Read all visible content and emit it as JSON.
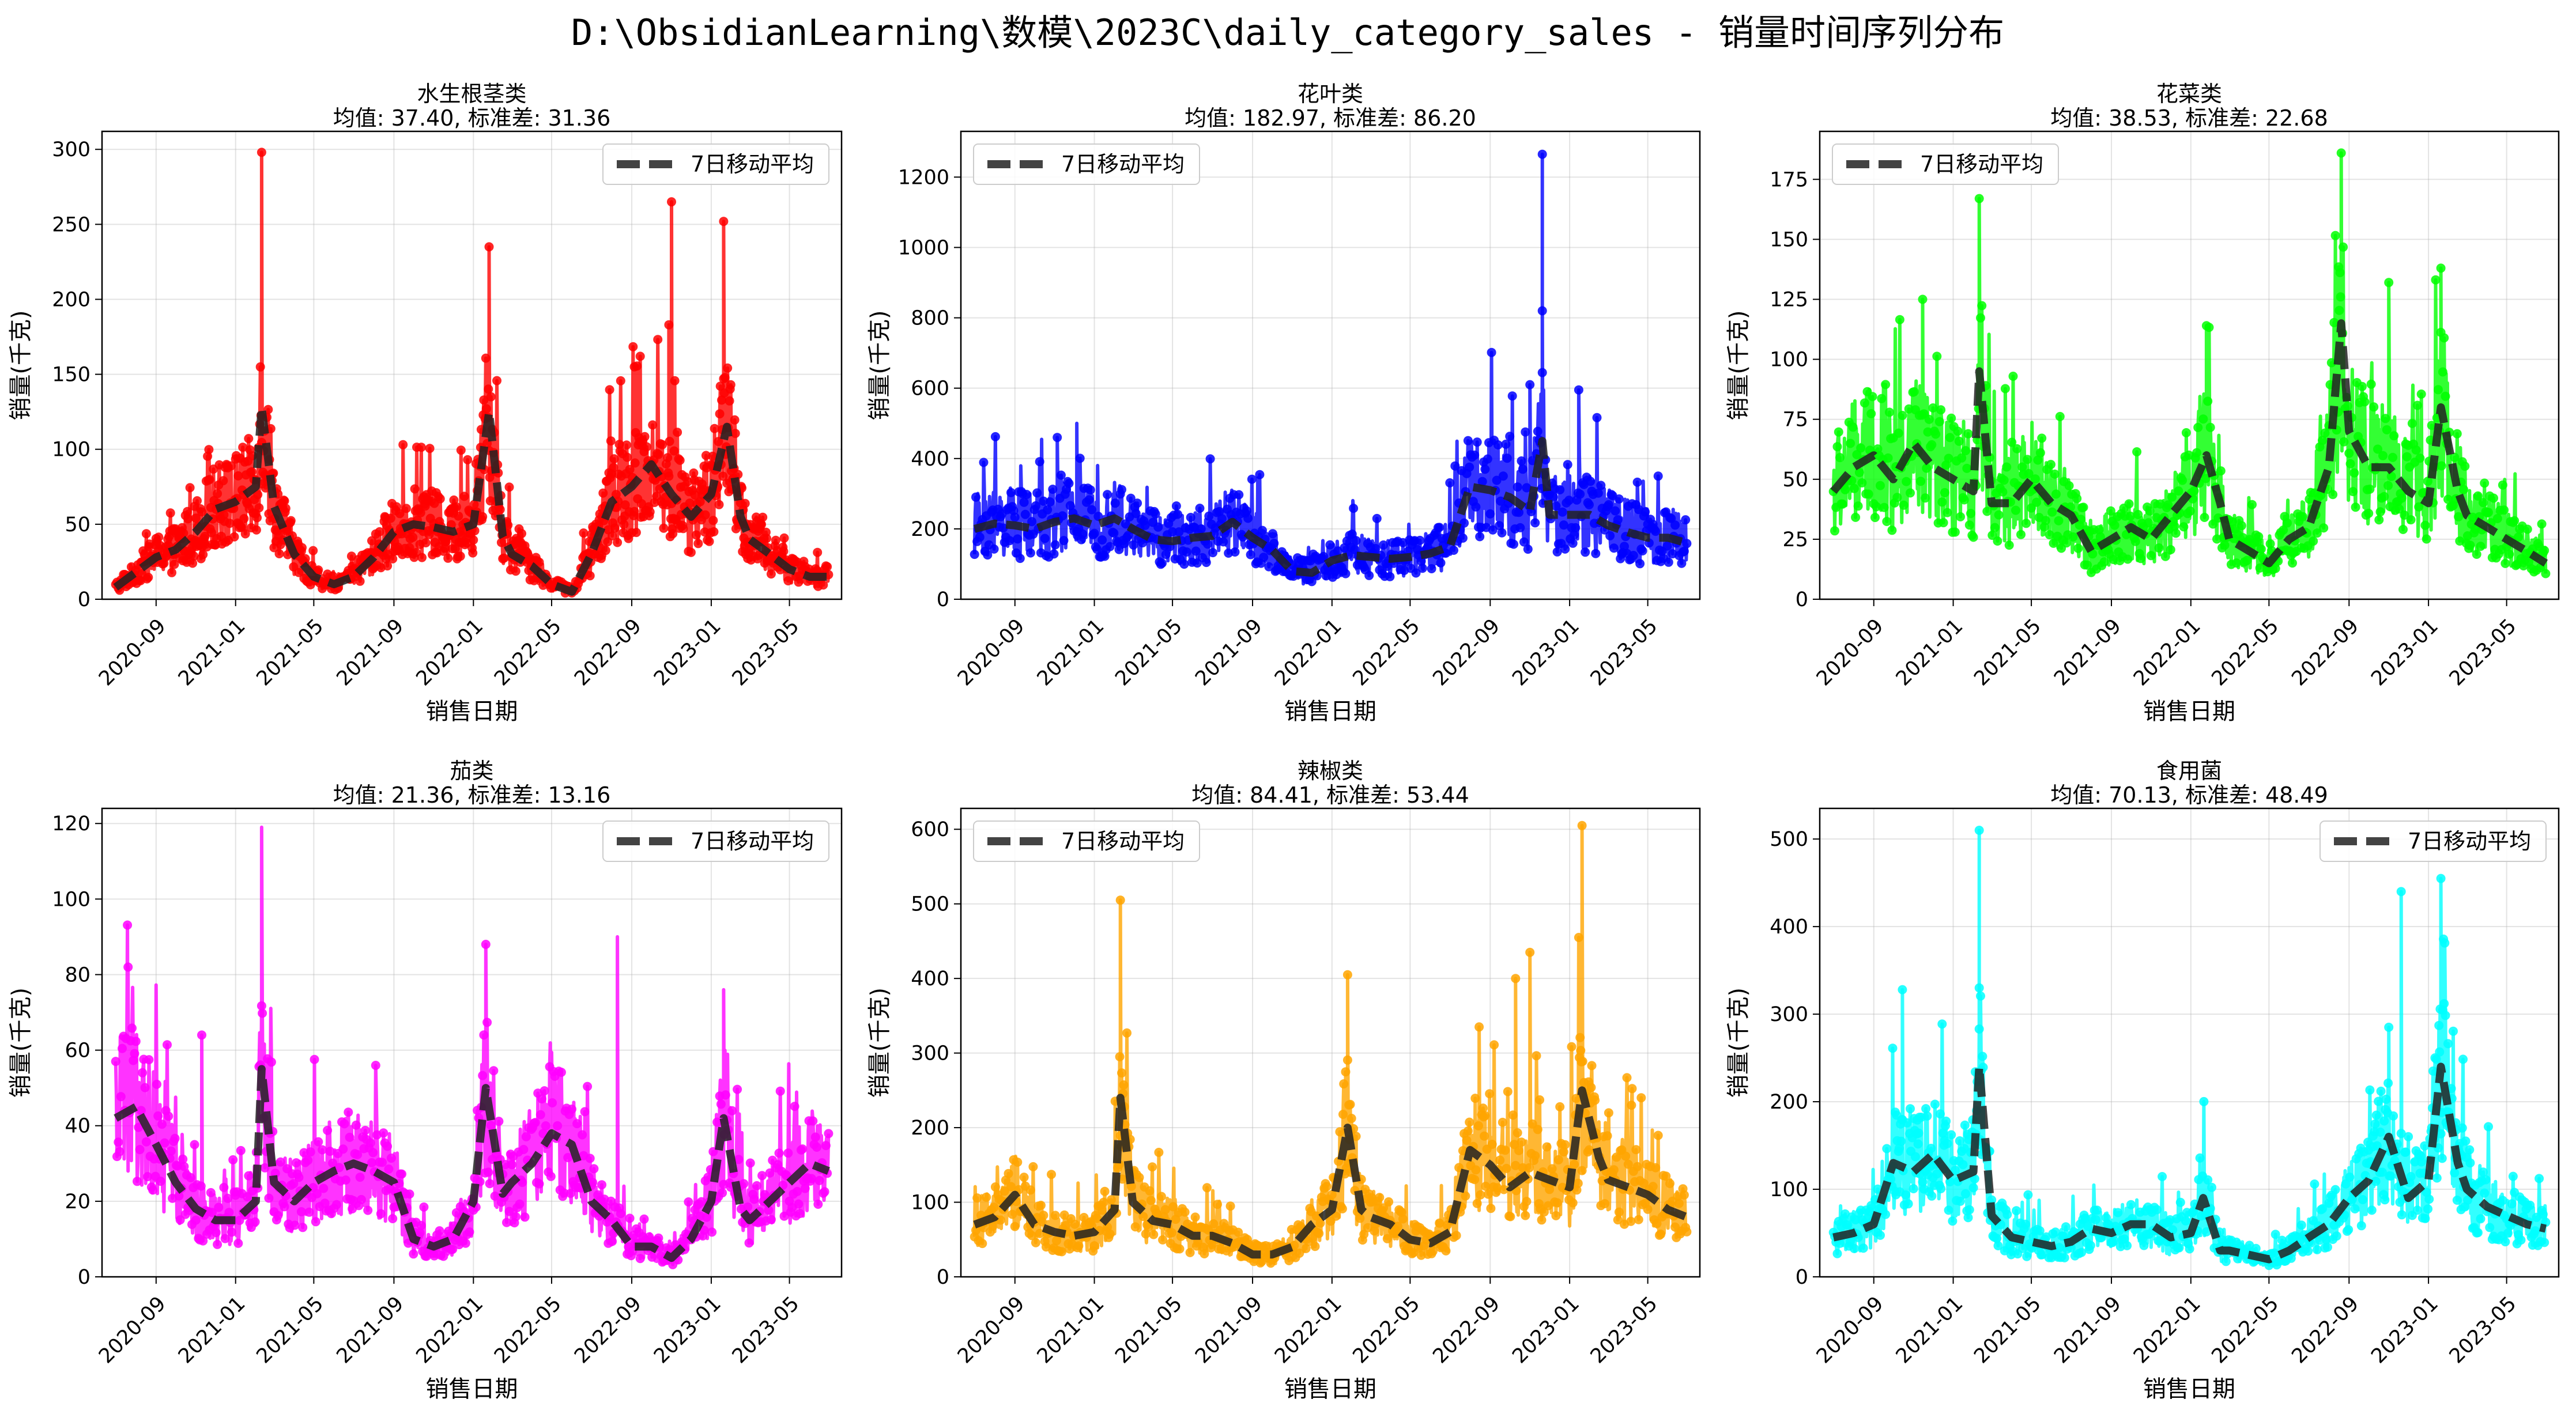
{
  "figure_title": "D:\\ObsidianLearning\\数模\\2023C\\daily_category_sales - 销量时间序列分布",
  "chart_data": [
    {
      "type": "line",
      "title": "水生根茎类",
      "subtitle": "均值: 37.40, 标准差: 31.36",
      "xlabel": "销售日期",
      "ylabel": "销量(千克)",
      "color": "#ff0000",
      "yticks": [
        0,
        50,
        100,
        150,
        200,
        250,
        300
      ],
      "ylim": [
        0,
        312
      ],
      "xlim": [
        "2020-06-10",
        "2023-07-20"
      ],
      "xticks": [
        "2020-09",
        "2021-01",
        "2021-05",
        "2021-09",
        "2022-01",
        "2022-05",
        "2022-09",
        "2023-01",
        "2023-05"
      ],
      "legend": {
        "label": "7日移动平均",
        "position": "upper right"
      },
      "grid": true,
      "x_start": "2020-07-01",
      "x_end": "2023-06-30",
      "series": [
        {
          "name": "7日移动平均",
          "style": "dashed",
          "color": "#222222",
          "x": [
            "2020-07-01",
            "2020-08-01",
            "2020-09-01",
            "2020-10-01",
            "2020-11-01",
            "2020-12-01",
            "2021-01-01",
            "2021-02-01",
            "2021-02-10",
            "2021-03-01",
            "2021-04-01",
            "2021-05-01",
            "2021-06-01",
            "2021-07-01",
            "2021-08-01",
            "2021-09-01",
            "2021-10-01",
            "2021-11-01",
            "2021-12-01",
            "2022-01-01",
            "2022-01-25",
            "2022-02-15",
            "2022-03-01",
            "2022-04-01",
            "2022-05-01",
            "2022-06-01",
            "2022-07-01",
            "2022-08-01",
            "2022-09-01",
            "2022-10-01",
            "2022-11-01",
            "2022-12-01",
            "2023-01-01",
            "2023-01-25",
            "2023-02-15",
            "2023-03-01",
            "2023-04-01",
            "2023-05-01",
            "2023-06-01",
            "2023-06-30"
          ],
          "values": [
            8,
            18,
            28,
            33,
            45,
            60,
            65,
            75,
            128,
            62,
            30,
            15,
            10,
            15,
            28,
            45,
            50,
            48,
            45,
            50,
            125,
            42,
            30,
            22,
            10,
            5,
            30,
            65,
            75,
            90,
            70,
            55,
            70,
            115,
            55,
            40,
            30,
            20,
            15,
            15
          ]
        }
      ],
      "spikes": [
        {
          "x": "2021-02-10",
          "y": 298
        },
        {
          "x": "2022-01-25",
          "y": 235
        },
        {
          "x": "2022-11-01",
          "y": 265
        },
        {
          "x": "2023-01-20",
          "y": 252
        },
        {
          "x": "2022-10-28",
          "y": 183
        },
        {
          "x": "2022-09-05",
          "y": 155
        }
      ]
    },
    {
      "type": "line",
      "title": "花叶类",
      "subtitle": "均值: 182.97, 标准差: 86.20",
      "xlabel": "销售日期",
      "ylabel": "销量(千克)",
      "color": "#0000ff",
      "yticks": [
        0,
        200,
        400,
        600,
        800,
        1000,
        1200
      ],
      "ylim": [
        0,
        1330
      ],
      "xlim": [
        "2020-06-10",
        "2023-07-20"
      ],
      "xticks": [
        "2020-09",
        "2021-01",
        "2021-05",
        "2021-09",
        "2022-01",
        "2022-05",
        "2022-09",
        "2023-01",
        "2023-05"
      ],
      "legend": {
        "label": "7日移动平均",
        "position": "upper left"
      },
      "grid": true,
      "x_start": "2020-07-01",
      "x_end": "2023-06-30",
      "series": [
        {
          "name": "7日移动平均",
          "style": "dashed",
          "color": "#222222",
          "x": [
            "2020-07-01",
            "2020-08-01",
            "2020-09-01",
            "2020-10-01",
            "2020-11-01",
            "2020-12-01",
            "2021-01-01",
            "2021-02-01",
            "2021-03-01",
            "2021-04-01",
            "2021-05-01",
            "2021-06-01",
            "2021-07-01",
            "2021-08-01",
            "2021-09-01",
            "2021-10-01",
            "2021-11-01",
            "2021-12-01",
            "2022-01-01",
            "2022-02-01",
            "2022-03-01",
            "2022-04-01",
            "2022-05-01",
            "2022-06-01",
            "2022-07-01",
            "2022-08-01",
            "2022-09-01",
            "2022-10-01",
            "2022-11-01",
            "2022-11-20",
            "2022-12-01",
            "2023-01-01",
            "2023-02-01",
            "2023-03-01",
            "2023-04-01",
            "2023-05-01",
            "2023-06-01",
            "2023-06-30"
          ],
          "values": [
            200,
            215,
            210,
            200,
            220,
            230,
            210,
            230,
            200,
            170,
            165,
            175,
            180,
            220,
            175,
            140,
            80,
            75,
            110,
            125,
            120,
            115,
            120,
            130,
            150,
            320,
            310,
            290,
            250,
            450,
            240,
            240,
            240,
            210,
            190,
            175,
            175,
            160
          ]
        }
      ],
      "spikes": [
        {
          "x": "2022-11-20",
          "y": 1265
        },
        {
          "x": "2022-11-20",
          "y": 820
        },
        {
          "x": "2022-11-01",
          "y": 610
        },
        {
          "x": "2023-01-15",
          "y": 595
        },
        {
          "x": "2020-12-05",
          "y": 500
        },
        {
          "x": "2020-11-05",
          "y": 460
        }
      ]
    },
    {
      "type": "line",
      "title": "花菜类",
      "subtitle": "均值: 38.53, 标准差: 22.68",
      "xlabel": "销售日期",
      "ylabel": "销量(千克)",
      "color": "#00ff00",
      "yticks": [
        0,
        25,
        50,
        75,
        100,
        125,
        150,
        175
      ],
      "ylim": [
        0,
        195
      ],
      "xlim": [
        "2020-06-10",
        "2023-07-20"
      ],
      "xticks": [
        "2020-09",
        "2021-01",
        "2021-05",
        "2021-09",
        "2022-01",
        "2022-05",
        "2022-09",
        "2023-01",
        "2023-05"
      ],
      "legend": {
        "label": "7日移动平均",
        "position": "upper left"
      },
      "grid": true,
      "x_start": "2020-07-01",
      "x_end": "2023-06-30",
      "series": [
        {
          "name": "7日移动平均",
          "style": "dashed",
          "color": "#222222",
          "x": [
            "2020-07-01",
            "2020-08-01",
            "2020-09-01",
            "2020-10-01",
            "2020-11-01",
            "2020-12-01",
            "2021-01-01",
            "2021-02-01",
            "2021-02-10",
            "2021-03-01",
            "2021-04-01",
            "2021-05-01",
            "2021-06-01",
            "2021-07-01",
            "2021-08-01",
            "2021-09-01",
            "2021-10-01",
            "2021-11-01",
            "2021-12-01",
            "2022-01-01",
            "2022-01-25",
            "2022-02-15",
            "2022-03-01",
            "2022-04-01",
            "2022-05-01",
            "2022-06-01",
            "2022-07-01",
            "2022-08-01",
            "2022-08-20",
            "2022-09-01",
            "2022-10-01",
            "2022-11-01",
            "2022-12-01",
            "2023-01-01",
            "2023-01-20",
            "2023-02-15",
            "2023-03-01",
            "2023-04-01",
            "2023-05-01",
            "2023-06-01",
            "2023-06-30"
          ],
          "values": [
            45,
            55,
            60,
            50,
            65,
            55,
            50,
            45,
            95,
            40,
            40,
            50,
            40,
            35,
            20,
            25,
            30,
            25,
            35,
            45,
            60,
            40,
            25,
            20,
            15,
            25,
            30,
            55,
            115,
            70,
            55,
            55,
            45,
            40,
            80,
            45,
            35,
            30,
            25,
            20,
            15
          ]
        }
      ],
      "spikes": [
        {
          "x": "2022-08-20",
          "y": 186
        },
        {
          "x": "2021-02-10",
          "y": 167
        },
        {
          "x": "2023-01-20",
          "y": 138
        },
        {
          "x": "2022-11-01",
          "y": 132
        },
        {
          "x": "2020-11-15",
          "y": 125
        },
        {
          "x": "2022-01-25",
          "y": 114
        }
      ]
    },
    {
      "type": "line",
      "title": "茄类",
      "subtitle": "均值: 21.36, 标准差: 13.16",
      "xlabel": "销售日期",
      "ylabel": "销量(千克)",
      "color": "#ff00ff",
      "yticks": [
        0,
        20,
        40,
        60,
        80,
        100,
        120
      ],
      "ylim": [
        0,
        124
      ],
      "xlim": [
        "2020-06-10",
        "2023-07-20"
      ],
      "xticks": [
        "2020-09",
        "2021-01",
        "2021-05",
        "2021-09",
        "2022-01",
        "2022-05",
        "2022-09",
        "2023-01",
        "2023-05"
      ],
      "legend": {
        "label": "7日移动平均",
        "position": "upper right"
      },
      "grid": true,
      "x_start": "2020-07-01",
      "x_end": "2023-06-30",
      "series": [
        {
          "name": "7日移动平均",
          "style": "dashed",
          "color": "#222222",
          "x": [
            "2020-07-01",
            "2020-08-01",
            "2020-09-01",
            "2020-10-01",
            "2020-11-01",
            "2020-12-01",
            "2021-01-01",
            "2021-02-01",
            "2021-02-10",
            "2021-03-01",
            "2021-04-01",
            "2021-05-01",
            "2021-06-01",
            "2021-07-01",
            "2021-08-01",
            "2021-09-01",
            "2021-10-01",
            "2021-11-01",
            "2021-12-01",
            "2022-01-01",
            "2022-01-20",
            "2022-02-15",
            "2022-03-01",
            "2022-04-01",
            "2022-05-01",
            "2022-06-01",
            "2022-07-01",
            "2022-08-01",
            "2022-09-01",
            "2022-10-01",
            "2022-11-01",
            "2022-12-01",
            "2023-01-01",
            "2023-01-20",
            "2023-02-15",
            "2023-03-01",
            "2023-04-01",
            "2023-05-01",
            "2023-06-01",
            "2023-06-30"
          ],
          "values": [
            42,
            45,
            35,
            25,
            18,
            15,
            15,
            20,
            55,
            25,
            20,
            25,
            28,
            30,
            28,
            25,
            10,
            8,
            10,
            20,
            50,
            22,
            25,
            30,
            38,
            35,
            20,
            15,
            8,
            8,
            5,
            10,
            20,
            42,
            18,
            15,
            20,
            25,
            30,
            28
          ]
        }
      ],
      "spikes": [
        {
          "x": "2021-02-10",
          "y": 119
        },
        {
          "x": "2022-08-10",
          "y": 90
        },
        {
          "x": "2022-01-20",
          "y": 88
        },
        {
          "x": "2020-07-20",
          "y": 82
        },
        {
          "x": "2023-01-20",
          "y": 76
        },
        {
          "x": "2020-11-10",
          "y": 64
        }
      ]
    },
    {
      "type": "line",
      "title": "辣椒类",
      "subtitle": "均值: 84.41, 标准差: 53.44",
      "xlabel": "销售日期",
      "ylabel": "销量(千克)",
      "color": "#ffa500",
      "yticks": [
        0,
        100,
        200,
        300,
        400,
        500,
        600
      ],
      "ylim": [
        0,
        628
      ],
      "xlim": [
        "2020-06-10",
        "2023-07-20"
      ],
      "xticks": [
        "2020-09",
        "2021-01",
        "2021-05",
        "2021-09",
        "2022-01",
        "2022-05",
        "2022-09",
        "2023-01",
        "2023-05"
      ],
      "legend": {
        "label": "7日移动平均",
        "position": "upper left"
      },
      "grid": true,
      "x_start": "2020-07-01",
      "x_end": "2023-06-30",
      "series": [
        {
          "name": "7日移动平均",
          "style": "dashed",
          "color": "#222222",
          "x": [
            "2020-07-01",
            "2020-08-01",
            "2020-09-01",
            "2020-10-01",
            "2020-11-01",
            "2020-12-01",
            "2021-01-01",
            "2021-02-01",
            "2021-02-10",
            "2021-03-01",
            "2021-04-01",
            "2021-05-01",
            "2021-06-01",
            "2021-07-01",
            "2021-08-01",
            "2021-09-01",
            "2021-10-01",
            "2021-11-01",
            "2021-12-01",
            "2022-01-01",
            "2022-01-25",
            "2022-02-15",
            "2022-03-01",
            "2022-04-01",
            "2022-05-01",
            "2022-06-01",
            "2022-07-01",
            "2022-08-01",
            "2022-09-01",
            "2022-10-01",
            "2022-11-01",
            "2022-12-01",
            "2023-01-01",
            "2023-01-20",
            "2023-02-15",
            "2023-03-01",
            "2023-04-01",
            "2023-05-01",
            "2023-06-01",
            "2023-06-30"
          ],
          "values": [
            70,
            80,
            110,
            70,
            60,
            55,
            60,
            90,
            240,
            100,
            75,
            70,
            55,
            55,
            45,
            30,
            30,
            40,
            70,
            90,
            200,
            90,
            80,
            70,
            50,
            45,
            60,
            170,
            150,
            120,
            140,
            130,
            120,
            250,
            160,
            130,
            120,
            110,
            90,
            80
          ]
        }
      ],
      "spikes": [
        {
          "x": "2021-02-10",
          "y": 505
        },
        {
          "x": "2023-01-20",
          "y": 605
        },
        {
          "x": "2022-11-01",
          "y": 435
        },
        {
          "x": "2022-10-10",
          "y": 400
        },
        {
          "x": "2022-01-25",
          "y": 405
        },
        {
          "x": "2022-08-15",
          "y": 335
        }
      ]
    },
    {
      "type": "line",
      "title": "食用菌",
      "subtitle": "均值: 70.13, 标准差: 48.49",
      "xlabel": "销售日期",
      "ylabel": "销量(千克)",
      "color": "#00ffff",
      "yticks": [
        0,
        100,
        200,
        300,
        400,
        500
      ],
      "ylim": [
        0,
        535
      ],
      "xlim": [
        "2020-06-10",
        "2023-07-20"
      ],
      "xticks": [
        "2020-09",
        "2021-01",
        "2021-05",
        "2021-09",
        "2022-01",
        "2022-05",
        "2022-09",
        "2023-01",
        "2023-05"
      ],
      "legend": {
        "label": "7日移动平均",
        "position": "upper right"
      },
      "grid": true,
      "x_start": "2020-07-01",
      "x_end": "2023-06-30",
      "series": [
        {
          "name": "7日移动平均",
          "style": "dashed",
          "color": "#222222",
          "x": [
            "2020-07-01",
            "2020-08-01",
            "2020-09-01",
            "2020-10-01",
            "2020-11-01",
            "2020-12-01",
            "2021-01-01",
            "2021-02-01",
            "2021-02-10",
            "2021-03-01",
            "2021-04-01",
            "2021-05-01",
            "2021-06-01",
            "2021-07-01",
            "2021-08-01",
            "2021-09-01",
            "2021-10-01",
            "2021-11-01",
            "2021-12-01",
            "2022-01-01",
            "2022-01-20",
            "2022-02-15",
            "2022-03-01",
            "2022-04-01",
            "2022-05-01",
            "2022-06-01",
            "2022-07-01",
            "2022-08-01",
            "2022-09-01",
            "2022-10-01",
            "2022-11-01",
            "2022-12-01",
            "2023-01-01",
            "2023-01-20",
            "2023-02-15",
            "2023-03-01",
            "2023-04-01",
            "2023-05-01",
            "2023-06-01",
            "2023-06-30"
          ],
          "values": [
            45,
            50,
            60,
            130,
            120,
            140,
            110,
            120,
            240,
            70,
            45,
            40,
            35,
            40,
            55,
            50,
            60,
            60,
            45,
            50,
            90,
            30,
            30,
            25,
            20,
            30,
            45,
            60,
            90,
            110,
            160,
            90,
            110,
            240,
            130,
            100,
            80,
            70,
            60,
            55
          ]
        }
      ],
      "spikes": [
        {
          "x": "2021-02-10",
          "y": 510
        },
        {
          "x": "2023-01-20",
          "y": 455
        },
        {
          "x": "2022-11-20",
          "y": 440
        },
        {
          "x": "2020-10-15",
          "y": 328
        },
        {
          "x": "2021-02-10",
          "y": 330
        },
        {
          "x": "2022-11-01",
          "y": 285
        }
      ]
    }
  ]
}
